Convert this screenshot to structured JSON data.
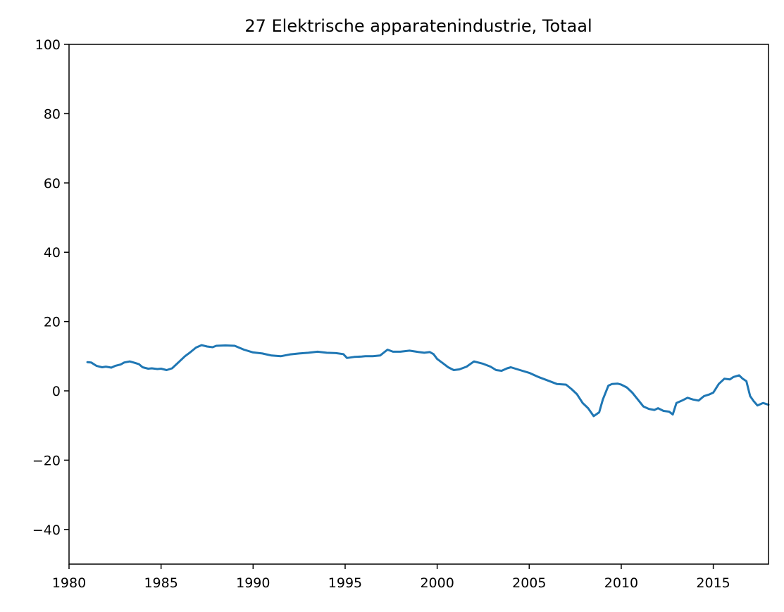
{
  "chart_data": {
    "type": "line",
    "title": "27 Elektrische apparatenindustrie, Totaal",
    "xlabel": "",
    "ylabel": "",
    "xlim": [
      1980,
      2018
    ],
    "ylim": [
      -50,
      100
    ],
    "xticks": [
      "1980",
      "1985",
      "1990",
      "1995",
      "2000",
      "2005",
      "2010",
      "2015"
    ],
    "yticks": [
      "100",
      "80",
      "60",
      "40",
      "20",
      "0",
      "−20",
      "−40"
    ],
    "grid": false,
    "legend": "none",
    "series": [
      {
        "color": "#1f77b4",
        "x": [
          1981.0,
          1981.2,
          1981.5,
          1981.8,
          1982.0,
          1982.3,
          1982.5,
          1982.8,
          1983.0,
          1983.3,
          1983.5,
          1983.8,
          1984.0,
          1984.3,
          1984.5,
          1984.8,
          1985.0,
          1985.3,
          1985.6,
          1985.9,
          1986.0,
          1986.3,
          1986.6,
          1986.9,
          1987.2,
          1987.5,
          1987.8,
          1988.0,
          1988.5,
          1989.0,
          1989.5,
          1990.0,
          1990.5,
          1991.0,
          1991.5,
          1992.0,
          1992.5,
          1993.0,
          1993.5,
          1994.0,
          1994.5,
          1994.9,
          1995.1,
          1995.5,
          1995.9,
          1996.1,
          1996.5,
          1996.9,
          1997.3,
          1997.6,
          1998.0,
          1998.5,
          1999.0,
          1999.3,
          1999.6,
          1999.8,
          2000.0,
          2000.3,
          2000.6,
          2000.9,
          2001.2,
          2001.6,
          2002.0,
          2002.5,
          2002.9,
          2003.2,
          2003.5,
          2003.8,
          2004.0,
          2004.5,
          2005.0,
          2005.5,
          2006.0,
          2006.5,
          2007.0,
          2007.3,
          2007.6,
          2007.9,
          2008.2,
          2008.5,
          2008.8,
          2009.0,
          2009.3,
          2009.5,
          2009.8,
          2010.0,
          2010.3,
          2010.6,
          2010.9,
          2011.2,
          2011.5,
          2011.8,
          2012.0,
          2012.3,
          2012.6,
          2012.8,
          2013.0,
          2013.3,
          2013.6,
          2013.9,
          2014.2,
          2014.5,
          2014.8,
          2015.0,
          2015.3,
          2015.6,
          2015.9,
          2016.1,
          2016.4,
          2016.6,
          2016.8,
          2017.0,
          2017.2,
          2017.4,
          2017.7,
          2018.0
        ],
        "values": [
          8.3,
          8.2,
          7.2,
          6.8,
          7.0,
          6.7,
          7.2,
          7.6,
          8.2,
          8.5,
          8.2,
          7.7,
          6.8,
          6.4,
          6.5,
          6.3,
          6.4,
          6.0,
          6.5,
          8.0,
          8.5,
          10.0,
          11.2,
          12.5,
          13.2,
          12.8,
          12.6,
          13.0,
          13.1,
          13.0,
          11.9,
          11.1,
          10.8,
          10.2,
          10.0,
          10.5,
          10.8,
          11.0,
          11.3,
          11.0,
          10.9,
          10.6,
          9.5,
          9.8,
          9.9,
          10.0,
          10.0,
          10.2,
          11.9,
          11.3,
          11.3,
          11.6,
          11.2,
          11.0,
          11.2,
          10.6,
          9.2,
          8.0,
          6.8,
          6.0,
          6.2,
          7.0,
          8.5,
          7.8,
          7.0,
          6.0,
          5.8,
          6.5,
          6.8,
          6.0,
          5.2,
          4.0,
          3.0,
          2.0,
          1.8,
          0.5,
          -1.0,
          -3.5,
          -5.0,
          -7.3,
          -6.2,
          -2.5,
          1.5,
          2.0,
          2.1,
          1.8,
          1.0,
          -0.5,
          -2.5,
          -4.5,
          -5.2,
          -5.5,
          -5.0,
          -5.8,
          -6.0,
          -6.8,
          -3.5,
          -2.8,
          -2.0,
          -2.5,
          -2.8,
          -1.5,
          -1.0,
          -0.5,
          2.0,
          3.5,
          3.3,
          4.0,
          4.5,
          3.5,
          2.8,
          -1.5,
          -3.0,
          -4.2,
          -3.5,
          -4.0
        ]
      }
    ]
  }
}
